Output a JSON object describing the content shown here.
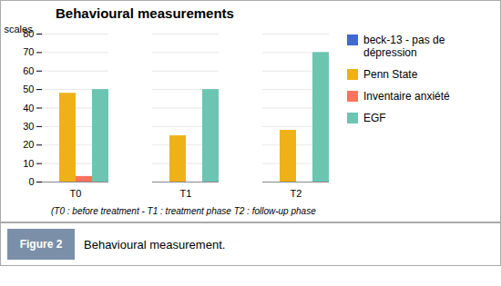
{
  "chart_data": {
    "type": "bar",
    "title": "Behavioural measurements",
    "ylabel": "scales",
    "note": "(T0 : before treatment - T1 : treatment phase T2 : follow-up phase",
    "figure_label": "Figure 2",
    "caption": "Behavioural measurement.",
    "categories": [
      "T0",
      "T1",
      "T2"
    ],
    "series": [
      {
        "name": "beck-13 - pas de\ndépression",
        "values": [
          0,
          0,
          0
        ]
      },
      {
        "name": "Penn State",
        "values": [
          48,
          25,
          28
        ]
      },
      {
        "name": "Inventaire anxiété",
        "values": [
          3,
          0,
          0
        ]
      },
      {
        "name": "EGF",
        "values": [
          50,
          50,
          70
        ]
      }
    ],
    "ylim": [
      0,
      80
    ],
    "yticks": [
      0,
      10,
      20,
      30,
      40,
      50,
      60,
      70,
      80
    ],
    "grid": true,
    "legend": "right"
  }
}
